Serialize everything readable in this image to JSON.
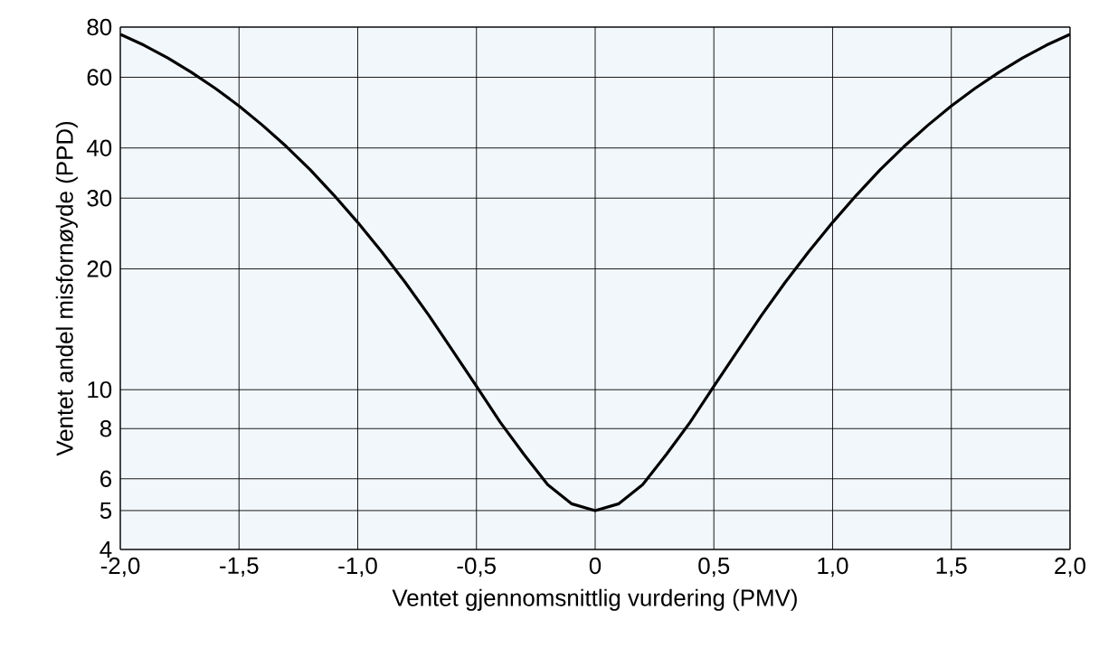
{
  "chart_data": {
    "type": "line",
    "xlabel": "Ventet gjennomsnittlig vurdering (PMV)",
    "ylabel": "Ventet andel misfornøyde (PPD)",
    "x": [
      -2.0,
      -1.9,
      -1.8,
      -1.7,
      -1.6,
      -1.5,
      -1.4,
      -1.3,
      -1.2,
      -1.1,
      -1.0,
      -0.9,
      -0.8,
      -0.7,
      -0.6,
      -0.5,
      -0.4,
      -0.3,
      -0.2,
      -0.1,
      0.0,
      0.1,
      0.2,
      0.3,
      0.4,
      0.5,
      0.6,
      0.7,
      0.8,
      0.9,
      1.0,
      1.1,
      1.2,
      1.3,
      1.4,
      1.5,
      1.6,
      1.7,
      1.8,
      1.9,
      2.0
    ],
    "values": [
      76.8,
      72.1,
      67.0,
      61.7,
      56.3,
      50.9,
      45.5,
      40.3,
      35.3,
      30.5,
      26.1,
      22.1,
      18.5,
      15.3,
      12.5,
      10.2,
      8.3,
      6.9,
      5.8,
      5.2,
      5.0,
      5.2,
      5.8,
      6.9,
      8.3,
      10.2,
      12.5,
      15.3,
      18.5,
      22.1,
      26.1,
      30.5,
      35.3,
      40.3,
      45.5,
      50.9,
      56.3,
      61.7,
      67.0,
      72.1,
      76.8
    ],
    "color": "#000000",
    "xlim": [
      -2.0,
      2.0
    ],
    "ylim": [
      4,
      80
    ],
    "xticks": [
      {
        "value": -2.0,
        "label": "-2,0"
      },
      {
        "value": -1.5,
        "label": "-1,5"
      },
      {
        "value": -1.0,
        "label": "-1,0"
      },
      {
        "value": -0.5,
        "label": "-0,5"
      },
      0,
      {
        "value": 0.5,
        "label": "0,5"
      },
      {
        "value": 1.0,
        "label": "1,0"
      },
      {
        "value": 1.5,
        "label": "1,5"
      },
      {
        "value": 2.0,
        "label": "2,0"
      }
    ],
    "yticks": [
      4,
      5,
      6,
      8,
      10,
      20,
      30,
      40,
      60,
      80
    ],
    "log": true,
    "grid": true,
    "line_style": "solid",
    "marker": "none"
  }
}
